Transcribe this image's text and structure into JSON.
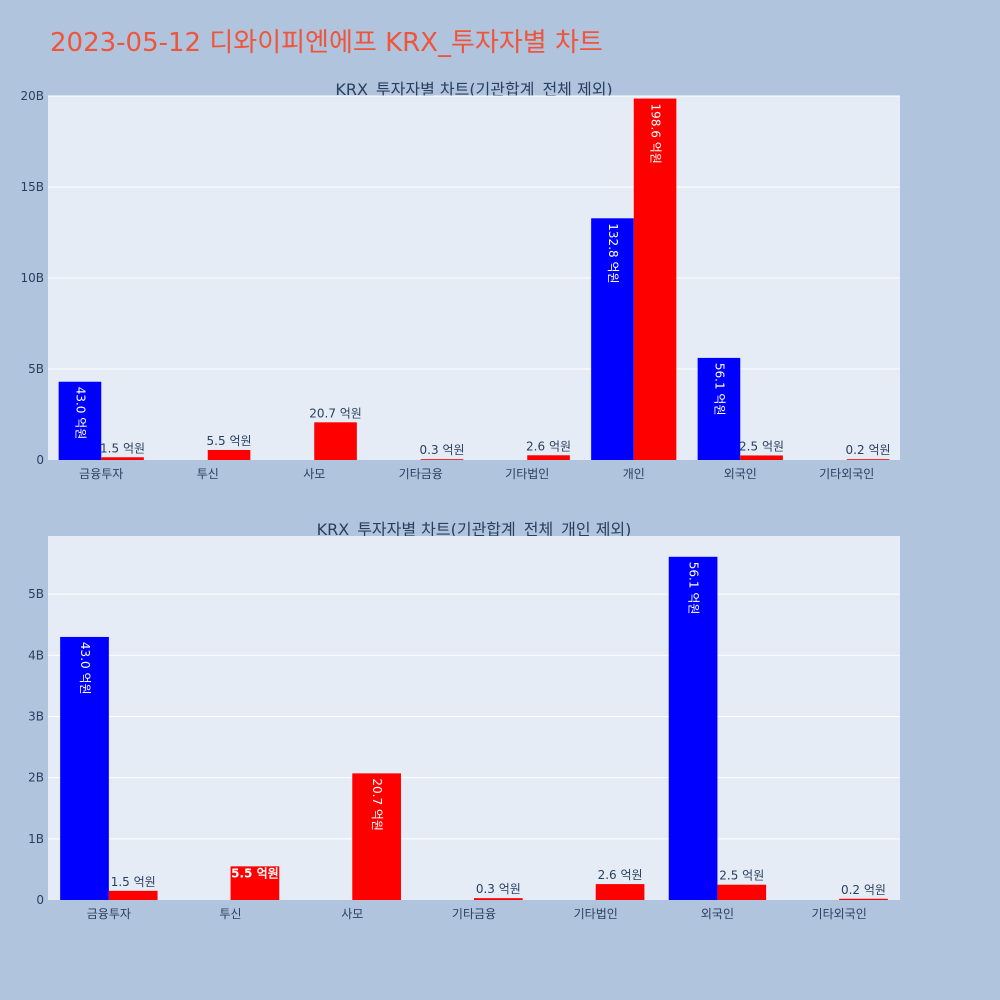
{
  "page": {
    "title": "2023-05-12 디와이피엔에프 KRX_투자자별 차트"
  },
  "chart_data": [
    {
      "type": "bar",
      "title": "KRX_투자자별 차트(기관합계_전체 제외)",
      "categories": [
        "금융투자",
        "투신",
        "사모",
        "기타금융",
        "기타법인",
        "개인",
        "외국인",
        "기타외국인"
      ],
      "yticks": [
        "0",
        "5B",
        "10B",
        "15B",
        "20B"
      ],
      "ylim": [
        0,
        20
      ],
      "grid": true,
      "series": [
        {
          "color": "#0000ff",
          "values": [
            4.3,
            null,
            null,
            null,
            null,
            13.28,
            5.61,
            null
          ],
          "labels": [
            "43.0 억원",
            "",
            "",
            "",
            "",
            "132.8 억원",
            "56.1 억원",
            ""
          ]
        },
        {
          "color": "#ff0000",
          "values": [
            0.15,
            0.55,
            2.07,
            0.03,
            0.26,
            19.86,
            0.25,
            0.02
          ],
          "labels": [
            "1.5 억원",
            "5.5 억원",
            "20.7 억원",
            "0.3 억원",
            "2.6 억원",
            "198.6 억원",
            "2.5 억원",
            "0.2 억원"
          ]
        }
      ]
    },
    {
      "type": "bar",
      "title": "KRX_투자자별 차트(기관합계_전체_개인 제외)",
      "categories": [
        "금융투자",
        "투신",
        "사모",
        "기타금융",
        "기타법인",
        "외국인",
        "기타외국인"
      ],
      "yticks": [
        "0",
        "1B",
        "2B",
        "3B",
        "4B",
        "5B"
      ],
      "ylim": [
        0,
        5.95
      ],
      "grid": true,
      "series": [
        {
          "color": "#0000ff",
          "values": [
            4.3,
            null,
            null,
            null,
            null,
            5.61,
            null
          ],
          "labels": [
            "43.0 억원",
            "",
            "",
            "",
            "",
            "56.1 억원",
            ""
          ]
        },
        {
          "color": "#ff0000",
          "values": [
            0.15,
            0.55,
            2.07,
            0.03,
            0.26,
            0.25,
            0.02
          ],
          "labels": [
            "1.5 억원",
            "5.5 억원",
            "20.7 억원",
            "0.3 억원",
            "2.6 억원",
            "2.5 억원",
            "0.2 억원"
          ]
        }
      ]
    }
  ]
}
